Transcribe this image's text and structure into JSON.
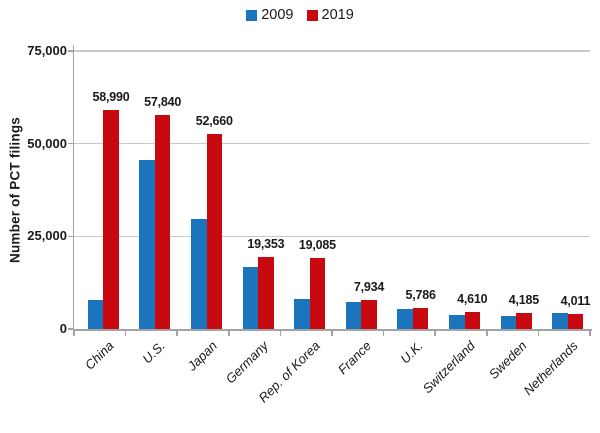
{
  "colors": {
    "series_2009_blue": "#1B75BC",
    "series_2019_red": "#C80A10",
    "axis_line": "#A3A3A3",
    "gridline": "#C9C9C9",
    "text": "#1A1A1A",
    "background": "#FFFFFF"
  },
  "chart_data": {
    "type": "bar",
    "title": "",
    "xlabel": "",
    "ylabel": "Number of PCT filings",
    "legend_position": "top",
    "grid": "horizontal",
    "ylim": [
      0,
      75000
    ],
    "yticks": [
      {
        "value": 0,
        "label": "0"
      },
      {
        "value": 25000,
        "label": "25,000"
      },
      {
        "value": 50000,
        "label": "50,000"
      },
      {
        "value": 75000,
        "label": "75,000"
      }
    ],
    "categories": [
      "China",
      "U.S.",
      "Japan",
      "Germany",
      "Rep. of Korea",
      "France",
      "U.K.",
      "Switzerland",
      "Sweden",
      "Netherlands"
    ],
    "series": [
      {
        "name": "2009",
        "color": "#1B75BC",
        "values": [
          7900,
          45600,
          29800,
          16800,
          8000,
          7200,
          5300,
          3700,
          3500,
          4400
        ]
      },
      {
        "name": "2019",
        "color": "#C80A10",
        "values": [
          58990,
          57840,
          52660,
          19353,
          19085,
          7934,
          5786,
          4610,
          4185,
          4011
        ],
        "labels": [
          "58,990",
          "57,840",
          "52,660",
          "19,353",
          "19,085",
          "7,934",
          "5,786",
          "4,610",
          "4,185",
          "4,011"
        ]
      }
    ]
  }
}
